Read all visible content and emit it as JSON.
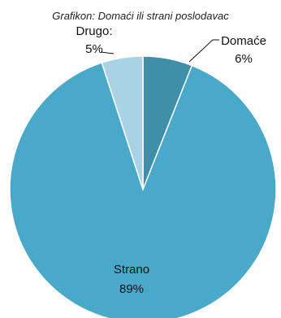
{
  "chart_data": {
    "type": "pie",
    "title": "Grafikon: Domaći ili strani poslodavac",
    "slices": [
      {
        "name": "Domaće",
        "value": 6,
        "label": "6%",
        "color": "#3f8fa9"
      },
      {
        "name": "Strano",
        "value": 89,
        "label": "89%",
        "color": "#4aa8c9"
      },
      {
        "name": "Drugo",
        "value": 5,
        "label": "5%",
        "color": "#a9d3e4"
      }
    ],
    "start_angle_deg": 0,
    "direction": "clockwise",
    "slice_border_color": "#ffffff"
  }
}
